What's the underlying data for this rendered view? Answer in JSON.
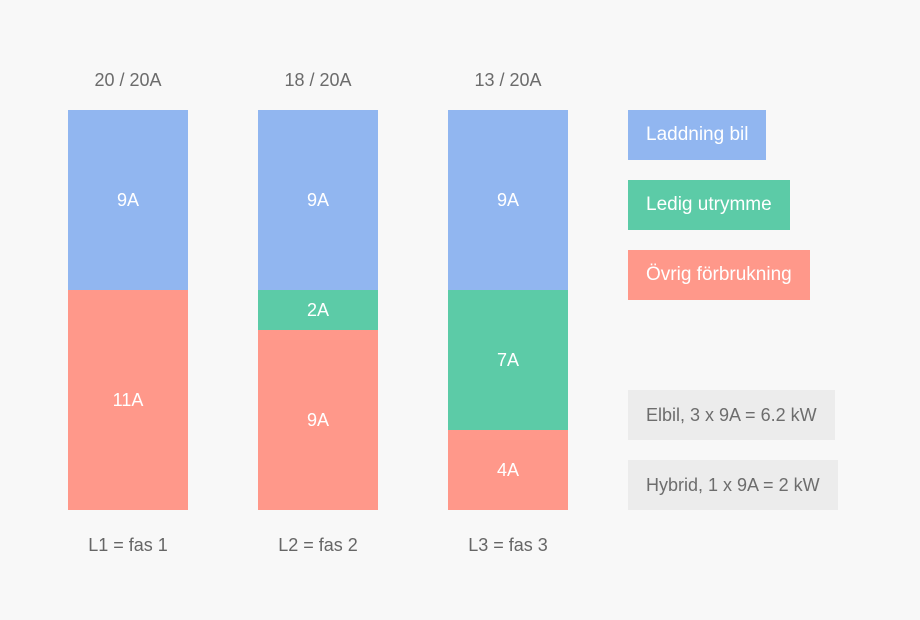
{
  "chart_data": {
    "type": "bar",
    "stacked": true,
    "unit": "A",
    "ylim": [
      0,
      20
    ],
    "categories": [
      "L1 = fas 1",
      "L2 = fas 2",
      "L3 = fas 3"
    ],
    "totals": [
      "20 / 20A",
      "18 / 20A",
      "13 / 20A"
    ],
    "series": [
      {
        "name": "Laddning bil",
        "color": "#91b6f0",
        "values": [
          9,
          9,
          9
        ],
        "labels": [
          "9A",
          "9A",
          "9A"
        ]
      },
      {
        "name": "Ledig utrymme",
        "color": "#5ccba7",
        "values": [
          0,
          2,
          7
        ],
        "labels": [
          "",
          "2A",
          "7A"
        ]
      },
      {
        "name": "Övrig förbrukning",
        "color": "#ff988a",
        "values": [
          11,
          9,
          4
        ],
        "labels": [
          "11A",
          "9A",
          "4A"
        ]
      }
    ],
    "legend": "right",
    "grid": false
  },
  "notes": [
    "Elbil, 3 x 9A = 6.2 kW",
    "Hybrid, 1 x 9A = 2 kW"
  ]
}
